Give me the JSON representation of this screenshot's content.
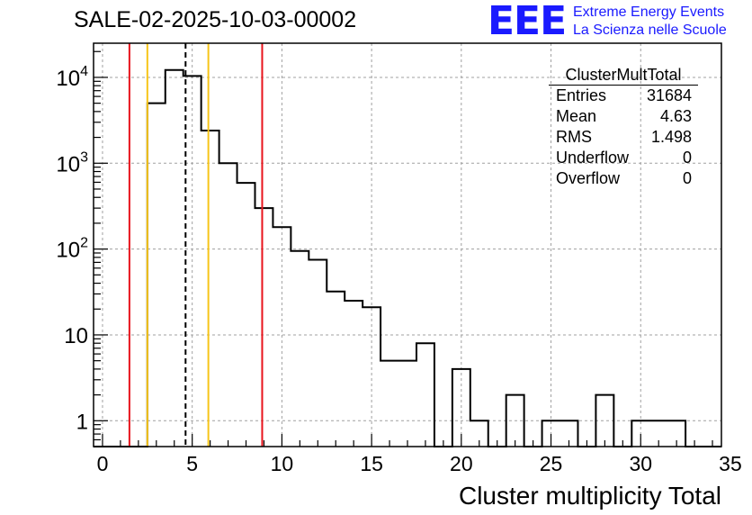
{
  "page": {
    "run_title": "SALE-02-2025-10-03-00002",
    "logo_text": "EEE",
    "org_line1": "Extreme Energy Events",
    "org_line2": "La Scienza nelle Scuole"
  },
  "stats_box": {
    "name": "ClusterMultTotal",
    "rows": [
      {
        "label": "Entries",
        "value": "31684"
      },
      {
        "label": "Mean",
        "value": "4.63"
      },
      {
        "label": "RMS",
        "value": "1.498"
      },
      {
        "label": "Underflow",
        "value": "0"
      },
      {
        "label": "Overflow",
        "value": "0"
      }
    ]
  },
  "chart_data": {
    "type": "histogram",
    "xlabel": "Cluster multiplicity Total",
    "ylabel": "",
    "yscale": "log",
    "xlim": [
      -0.5,
      34.5
    ],
    "ylim": [
      0.5,
      25000
    ],
    "grid": true,
    "x_ticks": [
      0,
      5,
      10,
      15,
      20,
      25,
      30,
      35
    ],
    "x_tick_labels": [
      "0",
      "5",
      "10",
      "15",
      "20",
      "25",
      "30",
      "35"
    ],
    "y_ticks": [
      1,
      10,
      100,
      1000,
      10000
    ],
    "y_tick_labels": [
      {
        "base": "1",
        "exp": ""
      },
      {
        "base": "10",
        "exp": ""
      },
      {
        "base": "10",
        "exp": "2"
      },
      {
        "base": "10",
        "exp": "3"
      },
      {
        "base": "10",
        "exp": "4"
      }
    ],
    "bin_width": 1,
    "first_bin_low": -0.5,
    "counts": [
      0,
      0,
      0,
      5000,
      12200,
      10400,
      2400,
      1000,
      590,
      300,
      180,
      95,
      75,
      32,
      25,
      21,
      5,
      5,
      8,
      0,
      4,
      1,
      0,
      2,
      0,
      1,
      1,
      0,
      2,
      0,
      1,
      1,
      1,
      0,
      0
    ],
    "vertical_lines": [
      {
        "name": "red-line-low",
        "x": 1.5,
        "color": "#e8141c",
        "style": "solid"
      },
      {
        "name": "yellow-line-low",
        "x": 2.5,
        "color": "#f7c519",
        "style": "solid"
      },
      {
        "name": "mean-line",
        "x": 4.63,
        "color": "#000000",
        "style": "dashed"
      },
      {
        "name": "yellow-line-high",
        "x": 5.9,
        "color": "#f7c519",
        "style": "solid"
      },
      {
        "name": "red-line-high",
        "x": 8.9,
        "color": "#e8141c",
        "style": "solid"
      }
    ]
  }
}
